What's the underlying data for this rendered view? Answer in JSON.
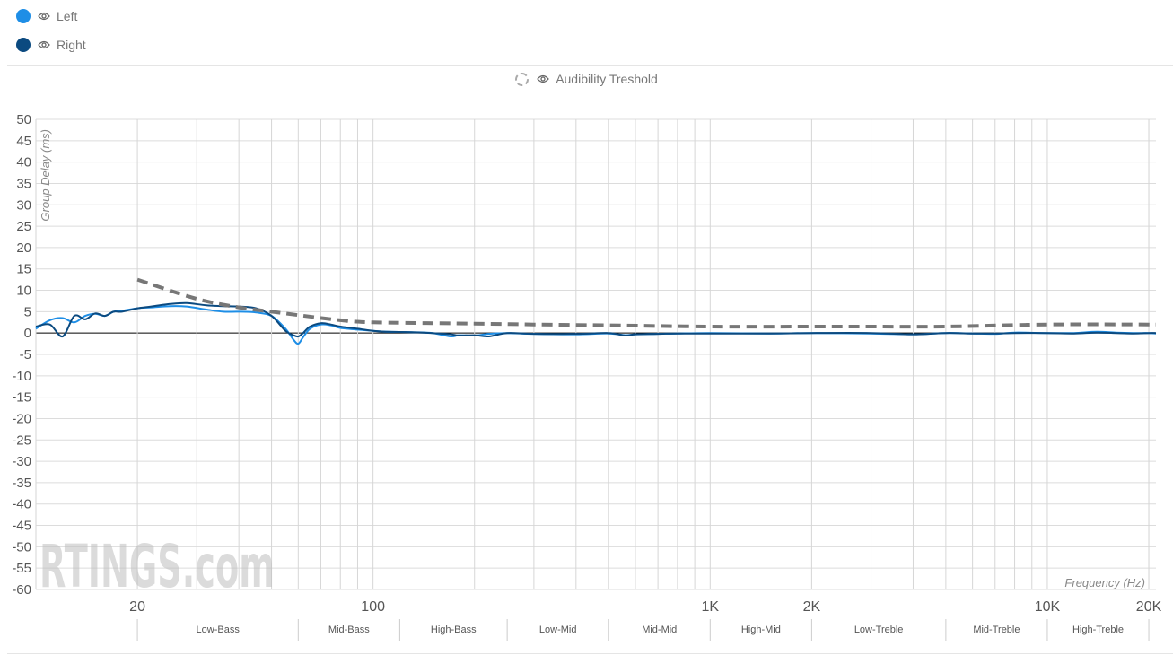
{
  "legend": {
    "items": [
      {
        "label": "Left",
        "color": "#1e8ee6",
        "icon": "eye-icon"
      },
      {
        "label": "Right",
        "color": "#0b4a80",
        "icon": "eye-icon"
      }
    ],
    "threshold_label": "Audibility Treshold",
    "threshold_icon": "eye-icon"
  },
  "watermark": "RTINGS.com",
  "chart_data": {
    "type": "line",
    "title": "",
    "ylabel": "Group Delay (ms)",
    "xlabel": "Frequency (Hz)",
    "xscale": "log",
    "xlim": [
      10,
      21000
    ],
    "ylim": [
      -60,
      50
    ],
    "yticks": [
      50,
      45,
      40,
      35,
      30,
      25,
      20,
      15,
      10,
      5,
      0,
      -5,
      -10,
      -15,
      -20,
      -25,
      -30,
      -35,
      -40,
      -45,
      -50,
      -55,
      -60
    ],
    "xticks": [
      {
        "value": 20,
        "label": "20"
      },
      {
        "value": 100,
        "label": "100"
      },
      {
        "value": 1000,
        "label": "1K"
      },
      {
        "value": 2000,
        "label": "2K"
      },
      {
        "value": 10000,
        "label": "10K"
      },
      {
        "value": 20000,
        "label": "20K"
      }
    ],
    "grid": true,
    "bands": [
      {
        "label": "Low-Bass",
        "from": 20,
        "to": 60
      },
      {
        "label": "Mid-Bass",
        "from": 60,
        "to": 120
      },
      {
        "label": "High-Bass",
        "from": 120,
        "to": 250
      },
      {
        "label": "Low-Mid",
        "from": 250,
        "to": 500
      },
      {
        "label": "Mid-Mid",
        "from": 500,
        "to": 1000
      },
      {
        "label": "High-Mid",
        "from": 1000,
        "to": 2000
      },
      {
        "label": "Low-Treble",
        "from": 2000,
        "to": 5000
      },
      {
        "label": "Mid-Treble",
        "from": 5000,
        "to": 10000
      },
      {
        "label": "High-Treble",
        "from": 10000,
        "to": 20000
      }
    ],
    "series": [
      {
        "name": "Left",
        "color": "#1e8ee6",
        "x": [
          10,
          11,
          12,
          13,
          14,
          15,
          16,
          17,
          18,
          20,
          22,
          25,
          28,
          32,
          36,
          40,
          45,
          50,
          55,
          58,
          60,
          62,
          65,
          70,
          75,
          80,
          90,
          100,
          110,
          130,
          150,
          170,
          180,
          200,
          220,
          250,
          300,
          400,
          500,
          560,
          600,
          700,
          800,
          1000,
          1500,
          2000,
          3000,
          4000,
          5000,
          6000,
          7000,
          8000,
          10000,
          12000,
          14000,
          16000,
          18000,
          20000,
          21000
        ],
        "y": [
          1.0,
          3.0,
          3.5,
          2.5,
          4.0,
          4.5,
          4.0,
          5.0,
          5.2,
          5.8,
          6.0,
          6.3,
          6.2,
          5.5,
          5.0,
          5.0,
          4.8,
          4.0,
          1.0,
          -1.5,
          -2.5,
          -1.0,
          1.0,
          2.0,
          1.8,
          1.2,
          0.8,
          0.5,
          0.3,
          0.2,
          0.0,
          -0.8,
          -0.5,
          -0.6,
          -0.2,
          0.0,
          -0.2,
          -0.3,
          -0.1,
          -0.5,
          -0.3,
          -0.2,
          -0.1,
          0.0,
          -0.1,
          0.0,
          -0.1,
          -0.3,
          0.0,
          -0.1,
          -0.2,
          0.1,
          0.0,
          0.0,
          0.3,
          0.1,
          0.0,
          0.0,
          -0.1
        ]
      },
      {
        "name": "Right",
        "color": "#0b4a80",
        "x": [
          10,
          11,
          12,
          13,
          14,
          15,
          16,
          17,
          18,
          20,
          22,
          25,
          28,
          32,
          36,
          40,
          45,
          50,
          55,
          58,
          60,
          62,
          65,
          70,
          75,
          80,
          90,
          100,
          110,
          130,
          150,
          170,
          180,
          200,
          220,
          250,
          300,
          400,
          500,
          560,
          600,
          700,
          800,
          1000,
          1500,
          2000,
          3000,
          4000,
          5000,
          6000,
          7000,
          8000,
          10000,
          12000,
          14000,
          16000,
          18000,
          20000,
          21000
        ],
        "y": [
          1.5,
          2.0,
          -0.8,
          4.0,
          3.2,
          4.6,
          4.0,
          5.0,
          5.0,
          5.8,
          6.2,
          6.8,
          7.0,
          6.5,
          6.3,
          6.2,
          5.8,
          4.0,
          0.5,
          -0.5,
          -0.8,
          0.0,
          1.5,
          2.3,
          2.0,
          1.5,
          1.0,
          0.5,
          0.3,
          0.2,
          0.0,
          -0.3,
          -0.6,
          -0.5,
          -0.8,
          0.0,
          -0.2,
          -0.2,
          0.0,
          -0.6,
          -0.3,
          -0.2,
          -0.1,
          -0.1,
          -0.1,
          0.0,
          0.0,
          -0.3,
          0.0,
          -0.1,
          -0.1,
          0.0,
          0.0,
          -0.1,
          0.1,
          0.0,
          -0.1,
          0.0,
          0.0
        ]
      },
      {
        "name": "Audibility Treshold",
        "color": "#777777",
        "dashed": true,
        "x": [
          20,
          30,
          40,
          50,
          60,
          80,
          100,
          200,
          300,
          500,
          1000,
          2000,
          3000,
          5000,
          10000,
          21000
        ],
        "y": [
          12.5,
          8.0,
          6.0,
          5.0,
          4.2,
          3.0,
          2.5,
          2.2,
          2.0,
          1.8,
          1.5,
          1.5,
          1.5,
          1.5,
          2.0,
          2.0
        ]
      }
    ]
  }
}
